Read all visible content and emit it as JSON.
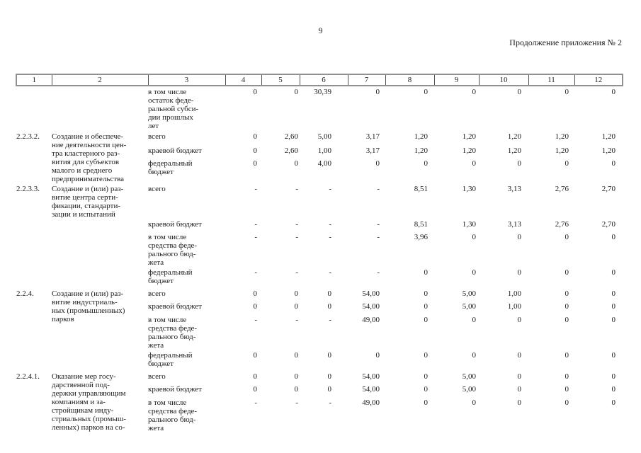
{
  "page": {
    "number": "9",
    "header_right": "Продолжение приложения № 2"
  },
  "table": {
    "column_headers": [
      "1",
      "2",
      "3",
      "4",
      "5",
      "6",
      "7",
      "8",
      "9",
      "10",
      "11",
      "12"
    ],
    "groups": [
      {
        "num": "",
        "name": "",
        "rows": [
          {
            "label": "в том числе\nостаток феде-\nральной субси-\nдии прошлых\nлет",
            "values": [
              "0",
              "0",
              "30,39",
              "0",
              "0",
              "0",
              "0",
              "0",
              "0"
            ]
          }
        ]
      },
      {
        "num": "2.2.3.2.",
        "name": "Создание и обеспече-\nние деятельности цен-\nтра кластерного раз-\nвития для субъектов\nмалого и среднего\nпредпринимательства",
        "rows": [
          {
            "label": "всего",
            "values": [
              "0",
              "2,60",
              "5,00",
              "3,17",
              "1,20",
              "1,20",
              "1,20",
              "1,20",
              "1,20"
            ]
          },
          {
            "label": "краевой бюджет",
            "values": [
              "0",
              "2,60",
              "1,00",
              "3,17",
              "1,20",
              "1,20",
              "1,20",
              "1,20",
              "1,20"
            ]
          },
          {
            "label": "федеральный\nбюджет",
            "values": [
              "0",
              "0",
              "4,00",
              "0",
              "0",
              "0",
              "0",
              "0",
              "0"
            ]
          }
        ]
      },
      {
        "num": "2.2.3.3.",
        "name": "Создание и (или) раз-\nвитие центра серти-\nфикации, стандарти-\nзации и испытаний",
        "rows": [
          {
            "label": "всего",
            "values": [
              "-",
              "-",
              "-",
              "-",
              "8,51",
              "1,30",
              "3,13",
              "2,76",
              "2,70"
            ]
          },
          {
            "label": "краевой бюджет",
            "values": [
              "-",
              "-",
              "-",
              "-",
              "8,51",
              "1,30",
              "3,13",
              "2,76",
              "2,70"
            ]
          },
          {
            "label": "в том числе\nсредства феде-\nрального бюд-\nжета",
            "values": [
              "-",
              "-",
              "-",
              "-",
              "3,96",
              "0",
              "0",
              "0",
              "0"
            ]
          },
          {
            "label": "федеральный\nбюджет",
            "values": [
              "-",
              "-",
              "-",
              "-",
              "0",
              "0",
              "0",
              "0",
              "0"
            ]
          }
        ]
      },
      {
        "num": "2.2.4.",
        "name": "Создание и (или) раз-\nвитие индустриаль-\nных (промышленных)\nпарков",
        "rows": [
          {
            "label": "всего",
            "values": [
              "0",
              "0",
              "0",
              "54,00",
              "0",
              "5,00",
              "1,00",
              "0",
              "0"
            ]
          },
          {
            "label": "краевой бюджет",
            "values": [
              "0",
              "0",
              "0",
              "54,00",
              "0",
              "5,00",
              "1,00",
              "0",
              "0"
            ]
          },
          {
            "label": "в том числе\nсредства феде-\nрального бюд-\nжета",
            "values": [
              "-",
              "-",
              "-",
              "49,00",
              "0",
              "0",
              "0",
              "0",
              "0"
            ]
          },
          {
            "label": "федеральный\nбюджет",
            "values": [
              "0",
              "0",
              "0",
              "0",
              "0",
              "0",
              "0",
              "0",
              "0"
            ]
          }
        ]
      },
      {
        "num": "2.2.4.1.",
        "name": "Оказание мер госу-\nдарственной под-\nдержки управляющим\nкомпаниям и за-\nстройщикам инду-\nстриальных (промыш-\nленных) парков на со-",
        "rows": [
          {
            "label": "всего",
            "values": [
              "0",
              "0",
              "0",
              "54,00",
              "0",
              "5,00",
              "0",
              "0",
              "0"
            ]
          },
          {
            "label": "краевой бюджет",
            "values": [
              "0",
              "0",
              "0",
              "54,00",
              "0",
              "5,00",
              "0",
              "0",
              "0"
            ]
          },
          {
            "label": "в том числе\nсредства феде-\nрального бюд-\nжета",
            "values": [
              "-",
              "-",
              "-",
              "49,00",
              "0",
              "0",
              "0",
              "0",
              "0"
            ]
          }
        ]
      }
    ]
  }
}
